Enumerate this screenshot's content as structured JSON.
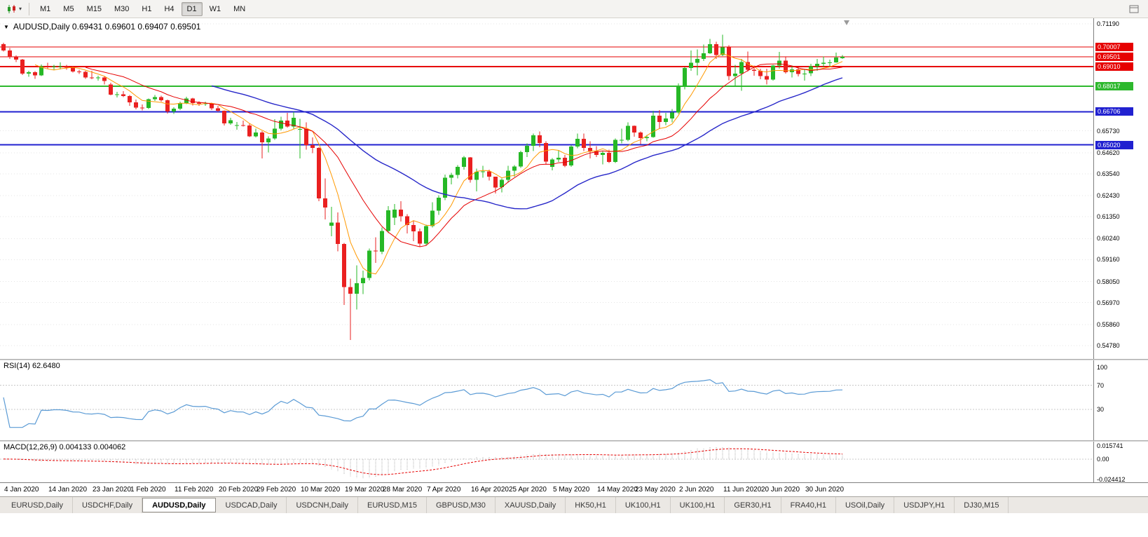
{
  "toolbar": {
    "dropdown_glyph": "▾",
    "timeframes": [
      "M1",
      "M5",
      "M15",
      "M30",
      "H1",
      "H4",
      "D1",
      "W1",
      "MN"
    ],
    "active_timeframe": "D1"
  },
  "chart": {
    "title": "AUDUSD,Daily 0.69431 0.69601 0.69407 0.69501",
    "dropdown_glyph": "▼"
  },
  "chart_data": {
    "type": "candlestick",
    "symbol": "AUDUSD",
    "timeframe": "Daily",
    "current_bar": {
      "open": "0.69431",
      "high": "0.69601",
      "low": "0.69407",
      "close": "0.69501"
    },
    "y_range": [
      0.7119,
      0.5478
    ],
    "y_ticks": [
      "0.71190",
      "0.65730",
      "0.64620",
      "0.63540",
      "0.62430",
      "0.61350",
      "0.60240",
      "0.59160",
      "0.58050",
      "0.56970",
      "0.55860",
      "0.54780"
    ],
    "hlines": [
      {
        "label": "0.70007",
        "price": 0.70007,
        "color": "#e60000",
        "width": 1
      },
      {
        "label": "0.69501",
        "price": 0.69501,
        "color": "#e60000",
        "width": 1,
        "current": true
      },
      {
        "label": "0.69010",
        "price": 0.6901,
        "color": "#e60000",
        "width": 2
      },
      {
        "label": "0.68017",
        "price": 0.68017,
        "color": "#2db82d",
        "width": 2
      },
      {
        "label": "0.66706",
        "price": 0.66706,
        "color": "#2121d0",
        "width": 2
      },
      {
        "label": "0.65020",
        "price": 0.6502,
        "color": "#2121d0",
        "width": 2
      }
    ],
    "x_labels": [
      {
        "label": "4 Jan 2020",
        "i": 1
      },
      {
        "label": "14 Jan 2020",
        "i": 8
      },
      {
        "label": "23 Jan 2020",
        "i": 15
      },
      {
        "label": "1 Feb 2020",
        "i": 21
      },
      {
        "label": "11 Feb 2020",
        "i": 28
      },
      {
        "label": "20 Feb 2020",
        "i": 35
      },
      {
        "label": "29 Feb 2020",
        "i": 41
      },
      {
        "label": "10 Mar 2020",
        "i": 48
      },
      {
        "label": "19 Mar 2020",
        "i": 55
      },
      {
        "label": "28 Mar 2020",
        "i": 61
      },
      {
        "label": "7 Apr 2020",
        "i": 68
      },
      {
        "label": "16 Apr 2020",
        "i": 75
      },
      {
        "label": "25 Apr 2020",
        "i": 81
      },
      {
        "label": "5 May 2020",
        "i": 88
      },
      {
        "label": "14 May 2020",
        "i": 95
      },
      {
        "label": "23 May 2020",
        "i": 101
      },
      {
        "label": "2 Jun 2020",
        "i": 108
      },
      {
        "label": "11 Jun 2020",
        "i": 115
      },
      {
        "label": "20 Jun 2020",
        "i": 121
      },
      {
        "label": "30 Jun 2020",
        "i": 128
      }
    ],
    "colors": {
      "up": "#26b826",
      "down": "#ea2020",
      "grid": "#e4e4e4"
    },
    "candles": [
      [
        0.7015,
        0.7023,
        0.6978,
        0.6983
      ],
      [
        0.6983,
        0.6995,
        0.6941,
        0.695
      ],
      [
        0.695,
        0.6958,
        0.6925,
        0.6936
      ],
      [
        0.6936,
        0.6941,
        0.6858,
        0.6865
      ],
      [
        0.6865,
        0.688,
        0.6849,
        0.6873
      ],
      [
        0.6873,
        0.6878,
        0.6838,
        0.6857
      ],
      [
        0.6857,
        0.6912,
        0.6853,
        0.6903
      ],
      [
        0.6903,
        0.692,
        0.689,
        0.69
      ],
      [
        0.69,
        0.691,
        0.6884,
        0.6903
      ],
      [
        0.6903,
        0.6922,
        0.6887,
        0.6903
      ],
      [
        0.6903,
        0.691,
        0.6885,
        0.6896
      ],
      [
        0.6896,
        0.6902,
        0.6871,
        0.6876
      ],
      [
        0.6876,
        0.6884,
        0.6863,
        0.6874
      ],
      [
        0.6874,
        0.688,
        0.6838,
        0.6846
      ],
      [
        0.6846,
        0.6879,
        0.6836,
        0.6842
      ],
      [
        0.6842,
        0.6854,
        0.683,
        0.6845
      ],
      [
        0.6845,
        0.6852,
        0.681,
        0.6828
      ],
      [
        0.681,
        0.6818,
        0.6754,
        0.6758
      ],
      [
        0.6758,
        0.6772,
        0.6744,
        0.676
      ],
      [
        0.676,
        0.6775,
        0.6745,
        0.6751
      ],
      [
        0.6751,
        0.6757,
        0.6701,
        0.6719
      ],
      [
        0.6719,
        0.6733,
        0.6682,
        0.6691
      ],
      [
        0.6691,
        0.6708,
        0.6678,
        0.669
      ],
      [
        0.669,
        0.6738,
        0.6685,
        0.6735
      ],
      [
        0.6735,
        0.6756,
        0.6725,
        0.6745
      ],
      [
        0.6745,
        0.6752,
        0.6722,
        0.673
      ],
      [
        0.673,
        0.6733,
        0.6662,
        0.6672
      ],
      [
        0.6672,
        0.6694,
        0.666,
        0.6686
      ],
      [
        0.6686,
        0.6723,
        0.668,
        0.6715
      ],
      [
        0.6715,
        0.6748,
        0.671,
        0.6738
      ],
      [
        0.6738,
        0.6742,
        0.6703,
        0.6716
      ],
      [
        0.6716,
        0.6724,
        0.67,
        0.6712
      ],
      [
        0.6712,
        0.6723,
        0.67,
        0.6714
      ],
      [
        0.6714,
        0.6717,
        0.668,
        0.6689
      ],
      [
        0.6689,
        0.67,
        0.667,
        0.6676
      ],
      [
        0.6676,
        0.6678,
        0.6601,
        0.6612
      ],
      [
        0.6612,
        0.664,
        0.6605,
        0.6627
      ],
      [
        0.66,
        0.6618,
        0.658,
        0.6603
      ],
      [
        0.6603,
        0.6625,
        0.6595,
        0.6601
      ],
      [
        0.6601,
        0.661,
        0.6542,
        0.6546
      ],
      [
        0.6546,
        0.6584,
        0.654,
        0.6565
      ],
      [
        0.6565,
        0.6572,
        0.6433,
        0.6515
      ],
      [
        0.6515,
        0.6545,
        0.6463,
        0.6534
      ],
      [
        0.6534,
        0.6632,
        0.6527,
        0.6584
      ],
      [
        0.6584,
        0.6645,
        0.6576,
        0.6626
      ],
      [
        0.6626,
        0.6665,
        0.659,
        0.6595
      ],
      [
        0.6595,
        0.6671,
        0.6585,
        0.664
      ],
      [
        0.658,
        0.6635,
        0.6432,
        0.6583
      ],
      [
        0.6583,
        0.6617,
        0.6477,
        0.65
      ],
      [
        0.65,
        0.654,
        0.646,
        0.6486
      ],
      [
        0.6486,
        0.649,
        0.6214,
        0.6229
      ],
      [
        0.6229,
        0.633,
        0.6121,
        0.6183
      ],
      [
        0.609,
        0.6185,
        0.6035,
        0.6105
      ],
      [
        0.6105,
        0.6158,
        0.5958,
        0.5997
      ],
      [
        0.5997,
        0.6001,
        0.5686,
        0.5777
      ],
      [
        0.5777,
        0.5819,
        0.5506,
        0.5743
      ],
      [
        0.5743,
        0.5887,
        0.5662,
        0.5797
      ],
      [
        0.5797,
        0.586,
        0.574,
        0.5823
      ],
      [
        0.5823,
        0.5974,
        0.581,
        0.5963
      ],
      [
        0.5963,
        0.603,
        0.59,
        0.5958
      ],
      [
        0.5958,
        0.608,
        0.5945,
        0.6062
      ],
      [
        0.6062,
        0.619,
        0.6052,
        0.6168
      ],
      [
        0.613,
        0.62,
        0.6093,
        0.6172
      ],
      [
        0.6172,
        0.6215,
        0.611,
        0.6137
      ],
      [
        0.6137,
        0.6148,
        0.605,
        0.6093
      ],
      [
        0.6093,
        0.6115,
        0.601,
        0.606
      ],
      [
        0.606,
        0.6075,
        0.5982,
        0.5999
      ],
      [
        0.5999,
        0.6095,
        0.599,
        0.6087
      ],
      [
        0.6087,
        0.621,
        0.608,
        0.6167
      ],
      [
        0.6167,
        0.6245,
        0.6145,
        0.6233
      ],
      [
        0.6233,
        0.635,
        0.622,
        0.6335
      ],
      [
        0.6335,
        0.636,
        0.63,
        0.6348
      ],
      [
        0.6348,
        0.6398,
        0.633,
        0.6389
      ],
      [
        0.6389,
        0.6445,
        0.6375,
        0.6438
      ],
      [
        0.6438,
        0.644,
        0.631,
        0.6323
      ],
      [
        0.6323,
        0.638,
        0.6265,
        0.6365
      ],
      [
        0.6365,
        0.6395,
        0.6335,
        0.6366
      ],
      [
        0.6366,
        0.6375,
        0.632,
        0.6339
      ],
      [
        0.6339,
        0.634,
        0.6253,
        0.6285
      ],
      [
        0.6285,
        0.633,
        0.626,
        0.6323
      ],
      [
        0.6323,
        0.6395,
        0.631,
        0.637
      ],
      [
        0.637,
        0.6398,
        0.634,
        0.6392
      ],
      [
        0.6392,
        0.6472,
        0.6385,
        0.6464
      ],
      [
        0.6464,
        0.651,
        0.644,
        0.6497
      ],
      [
        0.6497,
        0.656,
        0.647,
        0.6551
      ],
      [
        0.6551,
        0.657,
        0.649,
        0.6512
      ],
      [
        0.6512,
        0.652,
        0.6402,
        0.6417
      ],
      [
        0.639,
        0.6435,
        0.6372,
        0.6428
      ],
      [
        0.6428,
        0.6475,
        0.6415,
        0.6437
      ],
      [
        0.6437,
        0.645,
        0.6388,
        0.6396
      ],
      [
        0.6396,
        0.65,
        0.639,
        0.6493
      ],
      [
        0.6493,
        0.656,
        0.6485,
        0.6532
      ],
      [
        0.6532,
        0.656,
        0.647,
        0.6486
      ],
      [
        0.6486,
        0.652,
        0.6432,
        0.647
      ],
      [
        0.647,
        0.6495,
        0.644,
        0.6451
      ],
      [
        0.6451,
        0.647,
        0.6402,
        0.6462
      ],
      [
        0.6462,
        0.6478,
        0.641,
        0.6414
      ],
      [
        0.6414,
        0.6535,
        0.641,
        0.6527
      ],
      [
        0.6527,
        0.6585,
        0.651,
        0.6528
      ],
      [
        0.6528,
        0.6617,
        0.652,
        0.6598
      ],
      [
        0.6598,
        0.66,
        0.6543,
        0.6565
      ],
      [
        0.6565,
        0.657,
        0.6505,
        0.6536
      ],
      [
        0.6536,
        0.6552,
        0.652,
        0.6541
      ],
      [
        0.6541,
        0.6675,
        0.6538,
        0.665
      ],
      [
        0.665,
        0.668,
        0.6582,
        0.6619
      ],
      [
        0.6619,
        0.6665,
        0.6602,
        0.6637
      ],
      [
        0.6637,
        0.6684,
        0.6616,
        0.6667
      ],
      [
        0.6667,
        0.6815,
        0.666,
        0.6797
      ],
      [
        0.6797,
        0.69,
        0.6785,
        0.6893
      ],
      [
        0.6893,
        0.6983,
        0.688,
        0.6921
      ],
      [
        0.6921,
        0.6988,
        0.6857,
        0.694
      ],
      [
        0.694,
        0.7013,
        0.693,
        0.6968
      ],
      [
        0.6968,
        0.7043,
        0.6965,
        0.7015
      ],
      [
        0.7015,
        0.7027,
        0.694,
        0.696
      ],
      [
        0.696,
        0.7064,
        0.6955,
        0.7
      ],
      [
        0.7,
        0.701,
        0.6832,
        0.6852
      ],
      [
        0.6852,
        0.691,
        0.68,
        0.6866
      ],
      [
        0.6866,
        0.694,
        0.6777,
        0.6925
      ],
      [
        0.6925,
        0.6977,
        0.6875,
        0.6885
      ],
      [
        0.6885,
        0.6906,
        0.6855,
        0.688
      ],
      [
        0.688,
        0.689,
        0.6837,
        0.6853
      ],
      [
        0.6853,
        0.689,
        0.681,
        0.6834
      ],
      [
        0.6834,
        0.691,
        0.683,
        0.6906
      ],
      [
        0.6906,
        0.6976,
        0.689,
        0.6931
      ],
      [
        0.6931,
        0.695,
        0.6866,
        0.6872
      ],
      [
        0.6872,
        0.6905,
        0.6845,
        0.6886
      ],
      [
        0.6886,
        0.69,
        0.685,
        0.6864
      ],
      [
        0.6864,
        0.6886,
        0.683,
        0.6866
      ],
      [
        0.6866,
        0.6915,
        0.6852,
        0.6903
      ],
      [
        0.6903,
        0.694,
        0.688,
        0.6916
      ],
      [
        0.6916,
        0.6953,
        0.69,
        0.6921
      ],
      [
        0.6921,
        0.6936,
        0.6903,
        0.6923
      ],
      [
        0.6923,
        0.6972,
        0.692,
        0.6948
      ],
      [
        0.69431,
        0.69601,
        0.69407,
        0.69501
      ]
    ],
    "indicators": {
      "ma": [
        {
          "name": "ma-fast",
          "period": 6,
          "color": "#ff9900",
          "width": 1
        },
        {
          "name": "ma-medium",
          "period": 14,
          "color": "#e60000",
          "width": 1
        },
        {
          "name": "ma-slow",
          "period": 34,
          "color": "#2727c9",
          "width": 1.4
        }
      ],
      "rsi": {
        "label": "RSI(14) 62.6480",
        "period": 14,
        "color": "#5b9bd5",
        "levels": [
          "100",
          "70",
          "30"
        ],
        "level_values": [
          100,
          70,
          30
        ],
        "dotted_levels": [
          70,
          30
        ]
      },
      "macd": {
        "label": "MACD(12,26,9) 0.004133 0.004062",
        "fast": 12,
        "slow": 26,
        "signal": 9,
        "axis_labels": [
          "0.015741",
          "0.00",
          "-0.024412"
        ],
        "range": [
          0.015741,
          -0.024412
        ],
        "histogram_color": "#b0b0b0",
        "signal_color": "#e60000"
      }
    }
  },
  "tabs": {
    "items": [
      "EURUSD,Daily",
      "USDCHF,Daily",
      "AUDUSD,Daily",
      "USDCAD,Daily",
      "USDCNH,Daily",
      "EURUSD,M15",
      "GBPUSD,M30",
      "XAUUSD,Daily",
      "HK50,H1",
      "UK100,H1",
      "UK100,H1",
      "GER30,H1",
      "FRA40,H1",
      "USOil,Daily",
      "USDJPY,H1",
      "DJ30,M15"
    ],
    "active_index": 2
  }
}
